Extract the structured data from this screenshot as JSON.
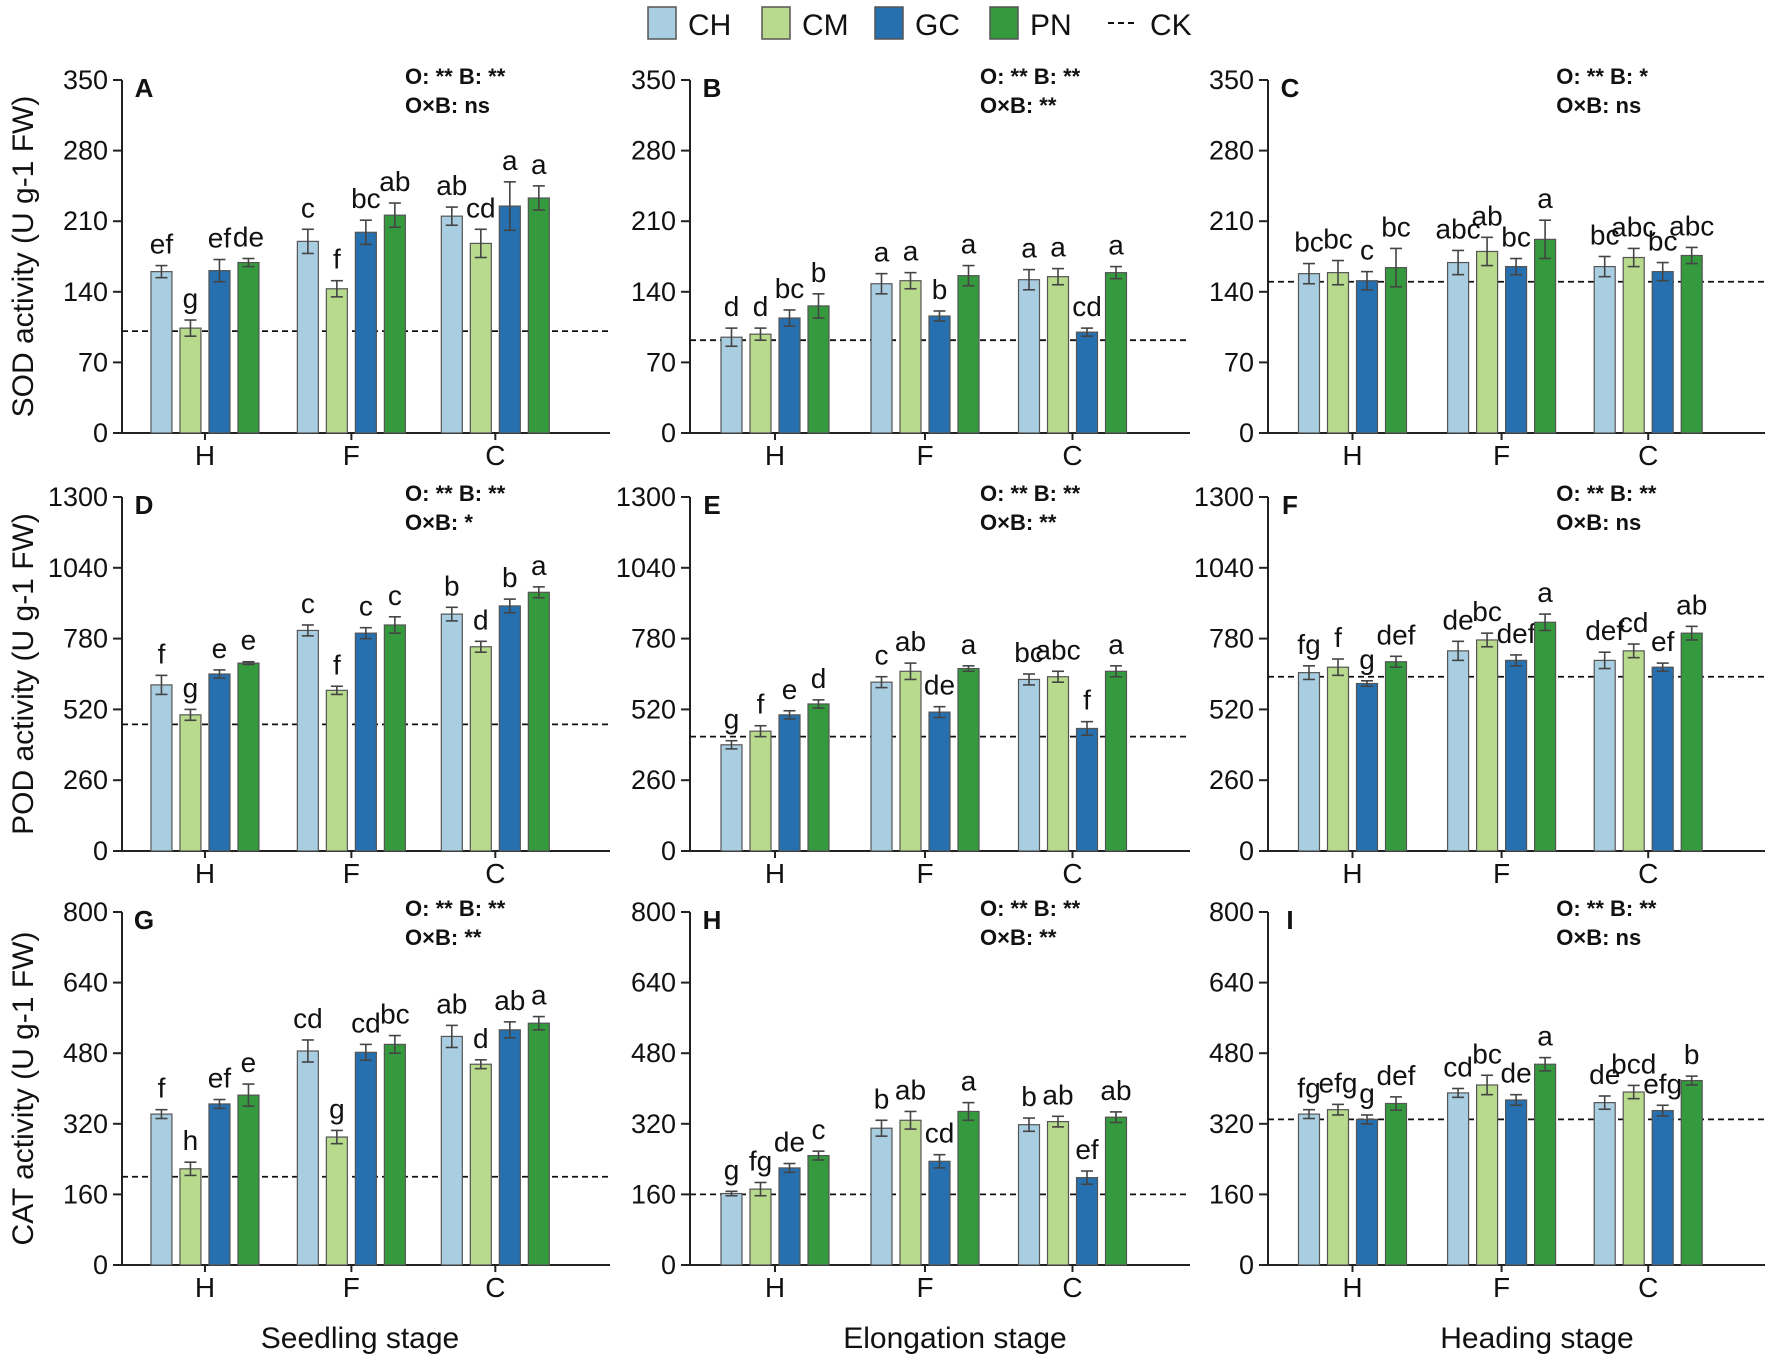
{
  "legend": [
    {
      "key": "CH",
      "label": "CH",
      "color": "#a9cde1"
    },
    {
      "key": "CM",
      "label": "CM",
      "color": "#b7da8c"
    },
    {
      "key": "GC",
      "label": "GC",
      "color": "#2670af"
    },
    {
      "key": "PN",
      "label": "PN",
      "color": "#359a3e"
    },
    {
      "key": "CK",
      "label": "CK",
      "style": "dashed line"
    }
  ],
  "columns": [
    "Seedling stage",
    "Elongation stage",
    "Heading stage"
  ],
  "chart_data": [
    {
      "type": "bar",
      "panel": "A",
      "ylabel": "SOD activity (U g-1 FW)",
      "ylim": [
        0,
        350
      ],
      "yticks": [
        0,
        70,
        140,
        210,
        280,
        350
      ],
      "stats": [
        "O: **  B: **",
        "O×B: ns"
      ],
      "ck": 101,
      "categories": [
        "H",
        "F",
        "C"
      ],
      "series": [
        {
          "name": "CH",
          "values": [
            160,
            190,
            215
          ],
          "errors": [
            6,
            12,
            9
          ],
          "letters": [
            "ef",
            "c",
            "ab"
          ]
        },
        {
          "name": "CM",
          "values": [
            104,
            143,
            188
          ],
          "errors": [
            8,
            8,
            14
          ],
          "letters": [
            "g",
            "f",
            "cd"
          ]
        },
        {
          "name": "GC",
          "values": [
            161,
            199,
            225
          ],
          "errors": [
            11,
            12,
            24
          ],
          "letters": [
            "ef",
            "bc",
            "a"
          ]
        },
        {
          "name": "PN",
          "values": [
            169,
            216,
            233
          ],
          "errors": [
            4,
            12,
            12
          ],
          "letters": [
            "de",
            "ab",
            "a"
          ]
        }
      ]
    },
    {
      "type": "bar",
      "panel": "B",
      "ylabel": "",
      "ylim": [
        0,
        350
      ],
      "yticks": [
        0,
        70,
        140,
        210,
        280,
        350
      ],
      "stats": [
        "O: **  B: **",
        "O×B: **"
      ],
      "ck": 92,
      "categories": [
        "H",
        "F",
        "C"
      ],
      "series": [
        {
          "name": "CH",
          "values": [
            95,
            148,
            152
          ],
          "errors": [
            9,
            10,
            10
          ],
          "letters": [
            "d",
            "a",
            "a"
          ]
        },
        {
          "name": "CM",
          "values": [
            98,
            151,
            155
          ],
          "errors": [
            6,
            8,
            8
          ],
          "letters": [
            "d",
            "a",
            "a"
          ]
        },
        {
          "name": "GC",
          "values": [
            114,
            116,
            100
          ],
          "errors": [
            8,
            5,
            4
          ],
          "letters": [
            "bc",
            "b",
            "cd"
          ]
        },
        {
          "name": "PN",
          "values": [
            126,
            156,
            159
          ],
          "errors": [
            12,
            10,
            6
          ],
          "letters": [
            "b",
            "a",
            "a"
          ]
        }
      ]
    },
    {
      "type": "bar",
      "panel": "C",
      "ylabel": "",
      "ylim": [
        0,
        350
      ],
      "yticks": [
        0,
        70,
        140,
        210,
        280,
        350
      ],
      "stats": [
        "O: **  B: *",
        "O×B: ns"
      ],
      "ck": 150,
      "categories": [
        "H",
        "F",
        "C"
      ],
      "series": [
        {
          "name": "CH",
          "values": [
            158,
            169,
            165
          ],
          "errors": [
            10,
            12,
            10
          ],
          "letters": [
            "bc",
            "abc",
            "bc"
          ]
        },
        {
          "name": "CM",
          "values": [
            159,
            180,
            174
          ],
          "errors": [
            12,
            14,
            9
          ],
          "letters": [
            "bc",
            "ab",
            "abc"
          ]
        },
        {
          "name": "GC",
          "values": [
            151,
            165,
            160
          ],
          "errors": [
            9,
            8,
            9
          ],
          "letters": [
            "c",
            "bc",
            "bc"
          ]
        },
        {
          "name": "PN",
          "values": [
            164,
            192,
            176
          ],
          "errors": [
            19,
            19,
            8
          ],
          "letters": [
            "bc",
            "a",
            "abc"
          ]
        }
      ]
    },
    {
      "type": "bar",
      "panel": "D",
      "ylabel": "POD activity (U g-1 FW)",
      "ylim": [
        0,
        1300
      ],
      "yticks": [
        0,
        260,
        520,
        780,
        1040,
        1300
      ],
      "stats": [
        "O: **  B: **",
        "O×B: *"
      ],
      "ck": 465,
      "categories": [
        "H",
        "F",
        "C"
      ],
      "series": [
        {
          "name": "CH",
          "values": [
            610,
            810,
            870
          ],
          "errors": [
            35,
            20,
            25
          ],
          "letters": [
            "f",
            "c",
            "b"
          ]
        },
        {
          "name": "CM",
          "values": [
            500,
            590,
            750
          ],
          "errors": [
            20,
            15,
            20
          ],
          "letters": [
            "g",
            "f",
            "d"
          ]
        },
        {
          "name": "GC",
          "values": [
            650,
            800,
            900
          ],
          "errors": [
            15,
            20,
            25
          ],
          "letters": [
            "e",
            "c",
            "b"
          ]
        },
        {
          "name": "PN",
          "values": [
            690,
            830,
            950
          ],
          "errors": [
            5,
            30,
            20
          ],
          "letters": [
            "e",
            "c",
            "a"
          ]
        }
      ]
    },
    {
      "type": "bar",
      "panel": "E",
      "ylabel": "",
      "ylim": [
        0,
        1300
      ],
      "yticks": [
        0,
        260,
        520,
        780,
        1040,
        1300
      ],
      "stats": [
        "O: **  B: **",
        "O×B: **"
      ],
      "ck": 420,
      "categories": [
        "H",
        "F",
        "C"
      ],
      "series": [
        {
          "name": "CH",
          "values": [
            390,
            620,
            630
          ],
          "errors": [
            15,
            20,
            20
          ],
          "letters": [
            "g",
            "c",
            "bc"
          ]
        },
        {
          "name": "CM",
          "values": [
            440,
            660,
            640
          ],
          "errors": [
            20,
            30,
            20
          ],
          "letters": [
            "f",
            "ab",
            "abc"
          ]
        },
        {
          "name": "GC",
          "values": [
            500,
            510,
            450
          ],
          "errors": [
            15,
            20,
            25
          ],
          "letters": [
            "e",
            "de",
            "f"
          ]
        },
        {
          "name": "PN",
          "values": [
            540,
            670,
            660
          ],
          "errors": [
            15,
            10,
            20
          ],
          "letters": [
            "d",
            "a",
            "a"
          ]
        }
      ]
    },
    {
      "type": "bar",
      "panel": "F",
      "ylabel": "",
      "ylim": [
        0,
        1300
      ],
      "yticks": [
        0,
        260,
        520,
        780,
        1040,
        1300
      ],
      "stats": [
        "O: **  B: **",
        "O×B: ns"
      ],
      "ck": 640,
      "categories": [
        "H",
        "F",
        "C"
      ],
      "series": [
        {
          "name": "CH",
          "values": [
            655,
            735,
            700
          ],
          "errors": [
            25,
            35,
            30
          ],
          "letters": [
            "fg",
            "de",
            "def"
          ]
        },
        {
          "name": "CM",
          "values": [
            675,
            775,
            735
          ],
          "errors": [
            30,
            25,
            25
          ],
          "letters": [
            "f",
            "bc",
            "cd"
          ]
        },
        {
          "name": "GC",
          "values": [
            615,
            700,
            675
          ],
          "errors": [
            10,
            20,
            15
          ],
          "letters": [
            "g",
            "def",
            "ef"
          ]
        },
        {
          "name": "PN",
          "values": [
            695,
            840,
            800
          ],
          "errors": [
            20,
            30,
            25
          ],
          "letters": [
            "def",
            "a",
            "ab"
          ]
        }
      ]
    },
    {
      "type": "bar",
      "panel": "G",
      "ylabel": "CAT activity (U g-1 FW)",
      "ylim": [
        0,
        800
      ],
      "yticks": [
        0,
        160,
        320,
        480,
        640,
        800
      ],
      "stats": [
        "O: **  B: **",
        "O×B: **"
      ],
      "ck": 200,
      "categories": [
        "H",
        "F",
        "C"
      ],
      "series": [
        {
          "name": "CH",
          "values": [
            342,
            485,
            518
          ],
          "errors": [
            10,
            25,
            25
          ],
          "letters": [
            "f",
            "cd",
            "ab"
          ]
        },
        {
          "name": "CM",
          "values": [
            218,
            290,
            455
          ],
          "errors": [
            15,
            15,
            10
          ],
          "letters": [
            "h",
            "g",
            "d"
          ]
        },
        {
          "name": "GC",
          "values": [
            365,
            482,
            533
          ],
          "errors": [
            10,
            18,
            18
          ],
          "letters": [
            "ef",
            "cd",
            "ab"
          ]
        },
        {
          "name": "PN",
          "values": [
            385,
            500,
            548
          ],
          "errors": [
            25,
            20,
            15
          ],
          "letters": [
            "e",
            "bc",
            "a"
          ]
        }
      ]
    },
    {
      "type": "bar",
      "panel": "H",
      "ylabel": "",
      "ylim": [
        0,
        800
      ],
      "yticks": [
        0,
        160,
        320,
        480,
        640,
        800
      ],
      "stats": [
        "O: **  B: **",
        "O×B: **"
      ],
      "ck": 160,
      "categories": [
        "H",
        "F",
        "C"
      ],
      "series": [
        {
          "name": "CH",
          "values": [
            162,
            310,
            318
          ],
          "errors": [
            5,
            18,
            15
          ],
          "letters": [
            "g",
            "b",
            "b"
          ]
        },
        {
          "name": "CM",
          "values": [
            172,
            328,
            325
          ],
          "errors": [
            15,
            20,
            12
          ],
          "letters": [
            "fg",
            "ab",
            "ab"
          ]
        },
        {
          "name": "GC",
          "values": [
            220,
            235,
            198
          ],
          "errors": [
            10,
            15,
            15
          ],
          "letters": [
            "de",
            "cd",
            "ef"
          ]
        },
        {
          "name": "PN",
          "values": [
            248,
            348,
            335
          ],
          "errors": [
            10,
            20,
            12
          ],
          "letters": [
            "c",
            "a",
            "ab"
          ]
        }
      ]
    },
    {
      "type": "bar",
      "panel": "I",
      "ylabel": "",
      "ylim": [
        0,
        800
      ],
      "yticks": [
        0,
        160,
        320,
        480,
        640,
        800
      ],
      "stats": [
        "O: **  B: **",
        "O×B: ns"
      ],
      "ck": 330,
      "categories": [
        "H",
        "F",
        "C"
      ],
      "series": [
        {
          "name": "CH",
          "values": [
            342,
            390,
            368
          ],
          "errors": [
            10,
            10,
            15
          ],
          "letters": [
            "fg",
            "cd",
            "de"
          ]
        },
        {
          "name": "CM",
          "values": [
            352,
            408,
            392
          ],
          "errors": [
            12,
            22,
            15
          ],
          "letters": [
            "efg",
            "bc",
            "bcd"
          ]
        },
        {
          "name": "GC",
          "values": [
            330,
            374,
            350
          ],
          "errors": [
            10,
            12,
            12
          ],
          "letters": [
            "g",
            "de",
            "efg"
          ]
        },
        {
          "name": "PN",
          "values": [
            366,
            455,
            418
          ],
          "errors": [
            15,
            15,
            10
          ],
          "letters": [
            "def",
            "a",
            "b"
          ]
        }
      ]
    }
  ]
}
